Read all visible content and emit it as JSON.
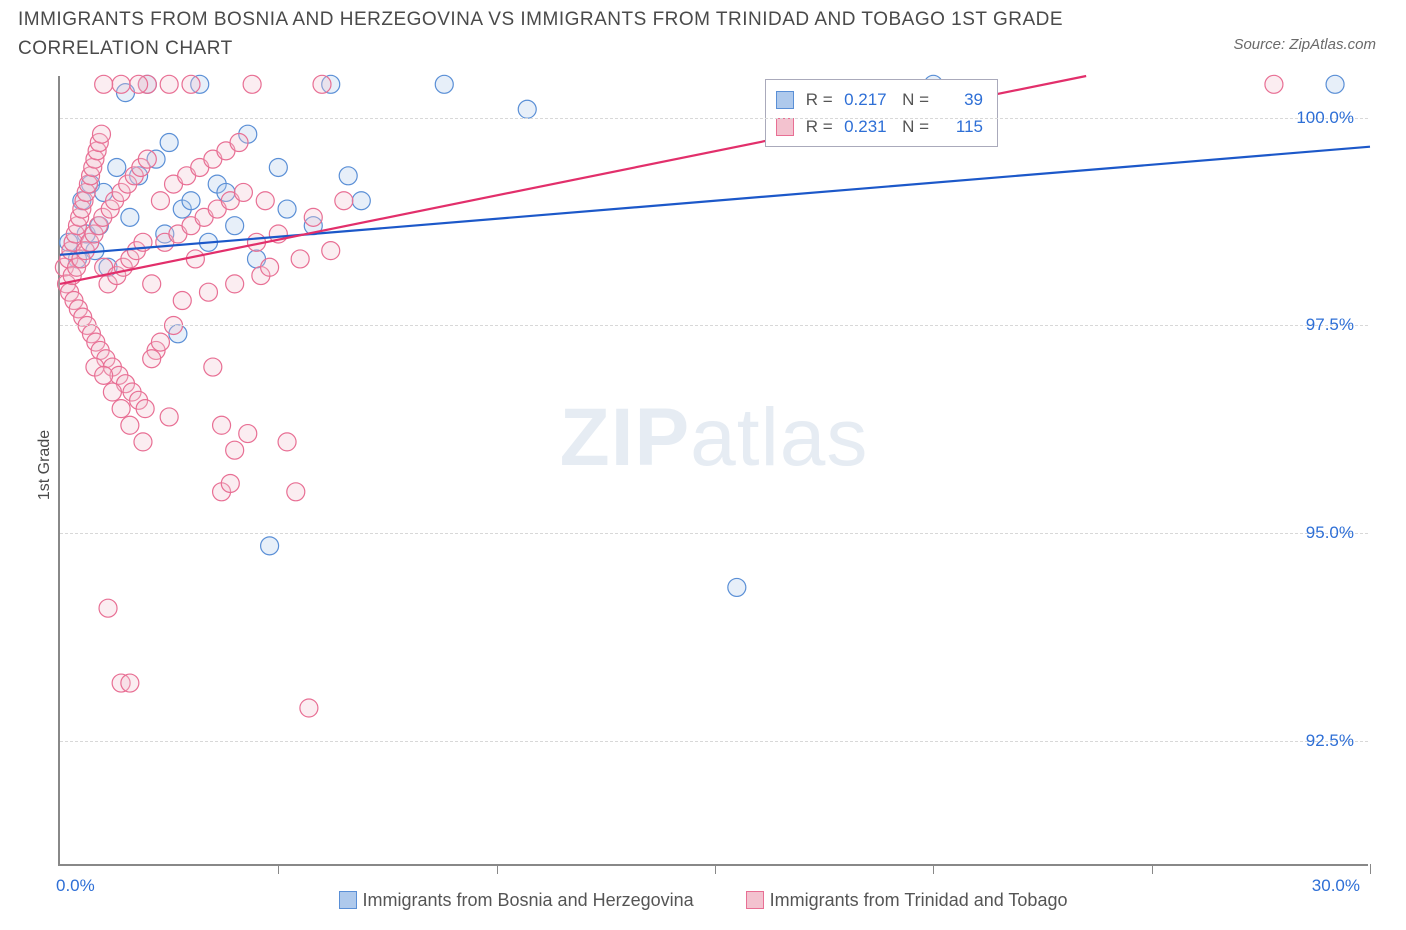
{
  "title": "IMMIGRANTS FROM BOSNIA AND HERZEGOVINA VS IMMIGRANTS FROM TRINIDAD AND TOBAGO 1ST GRADE CORRELATION CHART",
  "source": "Source: ZipAtlas.com",
  "ylabel": "1st Grade",
  "watermark_zip": "ZIP",
  "watermark_atlas": "atlas",
  "xlim": [
    0,
    30
  ],
  "ylim": [
    91,
    100.5
  ],
  "ytick_values": [
    92.5,
    95.0,
    97.5,
    100.0
  ],
  "ytick_labels": [
    "92.5%",
    "95.0%",
    "97.5%",
    "100.0%"
  ],
  "xtick_values": [
    5,
    10,
    15,
    20,
    25,
    30
  ],
  "xtick_label_left": "0.0%",
  "xtick_label_right": "30.0%",
  "series": [
    {
      "name": "Immigrants from Bosnia and Herzegovina",
      "color_fill": "#aec9ec",
      "color_stroke": "#5a8fd6",
      "line_color": "#1c58c9",
      "r_value": "0.217",
      "n_value": "39",
      "trend": {
        "x1": 0,
        "y1": 98.35,
        "x2": 30,
        "y2": 99.65
      },
      "points": [
        [
          0.2,
          98.5
        ],
        [
          0.4,
          98.3
        ],
        [
          0.5,
          99.0
        ],
        [
          0.6,
          98.6
        ],
        [
          0.7,
          99.2
        ],
        [
          0.8,
          98.4
        ],
        [
          0.9,
          98.7
        ],
        [
          1.0,
          99.1
        ],
        [
          1.1,
          98.2
        ],
        [
          1.3,
          99.4
        ],
        [
          1.5,
          100.3
        ],
        [
          1.6,
          98.8
        ],
        [
          1.8,
          99.3
        ],
        [
          2.0,
          100.4
        ],
        [
          2.2,
          99.5
        ],
        [
          2.4,
          98.6
        ],
        [
          2.5,
          99.7
        ],
        [
          2.7,
          97.4
        ],
        [
          2.8,
          98.9
        ],
        [
          3.0,
          99.0
        ],
        [
          3.2,
          100.4
        ],
        [
          3.4,
          98.5
        ],
        [
          3.6,
          99.2
        ],
        [
          3.8,
          99.1
        ],
        [
          4.0,
          98.7
        ],
        [
          4.3,
          99.8
        ],
        [
          4.5,
          98.3
        ],
        [
          4.8,
          94.85
        ],
        [
          5.0,
          99.4
        ],
        [
          5.2,
          98.9
        ],
        [
          5.8,
          98.7
        ],
        [
          6.2,
          100.4
        ],
        [
          6.6,
          99.3
        ],
        [
          6.9,
          99.0
        ],
        [
          8.8,
          100.4
        ],
        [
          10.7,
          100.1
        ],
        [
          15.5,
          94.35
        ],
        [
          20.0,
          100.4
        ],
        [
          29.2,
          100.4
        ]
      ]
    },
    {
      "name": "Immigrants from Trinidad and Tobago",
      "color_fill": "#f3c2cf",
      "color_stroke": "#e86f94",
      "line_color": "#e22f6b",
      "r_value": "0.231",
      "n_value": "115",
      "trend": {
        "x1": 0,
        "y1": 98.0,
        "x2": 23.5,
        "y2": 100.5
      },
      "points": [
        [
          0.1,
          98.2
        ],
        [
          0.15,
          98.0
        ],
        [
          0.2,
          98.3
        ],
        [
          0.22,
          97.9
        ],
        [
          0.25,
          98.4
        ],
        [
          0.28,
          98.1
        ],
        [
          0.3,
          98.5
        ],
        [
          0.32,
          97.8
        ],
        [
          0.35,
          98.6
        ],
        [
          0.38,
          98.2
        ],
        [
          0.4,
          98.7
        ],
        [
          0.42,
          97.7
        ],
        [
          0.45,
          98.8
        ],
        [
          0.48,
          98.3
        ],
        [
          0.5,
          98.9
        ],
        [
          0.52,
          97.6
        ],
        [
          0.55,
          99.0
        ],
        [
          0.58,
          98.4
        ],
        [
          0.6,
          99.1
        ],
        [
          0.62,
          97.5
        ],
        [
          0.65,
          99.2
        ],
        [
          0.68,
          98.5
        ],
        [
          0.7,
          99.3
        ],
        [
          0.72,
          97.4
        ],
        [
          0.75,
          99.4
        ],
        [
          0.78,
          98.6
        ],
        [
          0.8,
          99.5
        ],
        [
          0.82,
          97.3
        ],
        [
          0.85,
          99.6
        ],
        [
          0.88,
          98.7
        ],
        [
          0.9,
          99.7
        ],
        [
          0.92,
          97.2
        ],
        [
          0.95,
          99.8
        ],
        [
          0.98,
          98.8
        ],
        [
          1.0,
          98.2
        ],
        [
          1.05,
          97.1
        ],
        [
          1.1,
          98.0
        ],
        [
          1.15,
          98.9
        ],
        [
          1.2,
          97.0
        ],
        [
          1.25,
          99.0
        ],
        [
          1.3,
          98.1
        ],
        [
          1.35,
          96.9
        ],
        [
          1.4,
          99.1
        ],
        [
          1.45,
          98.2
        ],
        [
          1.5,
          96.8
        ],
        [
          1.55,
          99.2
        ],
        [
          1.6,
          98.3
        ],
        [
          1.65,
          96.7
        ],
        [
          1.7,
          99.3
        ],
        [
          1.75,
          98.4
        ],
        [
          1.8,
          96.6
        ],
        [
          1.85,
          99.4
        ],
        [
          1.9,
          98.5
        ],
        [
          1.95,
          96.5
        ],
        [
          2.0,
          99.5
        ],
        [
          2.1,
          98.0
        ],
        [
          2.2,
          97.2
        ],
        [
          2.3,
          99.0
        ],
        [
          2.4,
          98.5
        ],
        [
          2.5,
          96.4
        ],
        [
          2.6,
          99.2
        ],
        [
          2.7,
          98.6
        ],
        [
          2.8,
          97.8
        ],
        [
          2.9,
          99.3
        ],
        [
          3.0,
          98.7
        ],
        [
          3.1,
          98.3
        ],
        [
          3.2,
          99.4
        ],
        [
          3.3,
          98.8
        ],
        [
          3.4,
          97.9
        ],
        [
          3.5,
          99.5
        ],
        [
          3.6,
          98.9
        ],
        [
          3.7,
          96.3
        ],
        [
          3.8,
          99.6
        ],
        [
          3.9,
          99.0
        ],
        [
          4.0,
          98.0
        ],
        [
          4.1,
          99.7
        ],
        [
          4.2,
          99.1
        ],
        [
          4.3,
          96.2
        ],
        [
          4.4,
          100.4
        ],
        [
          4.5,
          98.5
        ],
        [
          4.6,
          98.1
        ],
        [
          4.7,
          99.0
        ],
        [
          4.8,
          98.2
        ],
        [
          5.0,
          98.6
        ],
        [
          5.2,
          96.1
        ],
        [
          5.4,
          95.5
        ],
        [
          5.5,
          98.3
        ],
        [
          5.8,
          98.8
        ],
        [
          6.0,
          100.4
        ],
        [
          6.2,
          98.4
        ],
        [
          6.5,
          99.0
        ],
        [
          0.8,
          97.0
        ],
        [
          1.0,
          96.9
        ],
        [
          1.2,
          96.7
        ],
        [
          1.4,
          96.5
        ],
        [
          1.6,
          96.3
        ],
        [
          1.9,
          96.1
        ],
        [
          2.1,
          97.1
        ],
        [
          2.3,
          97.3
        ],
        [
          2.6,
          97.5
        ],
        [
          3.5,
          97.0
        ],
        [
          1.1,
          94.1
        ],
        [
          1.4,
          93.2
        ],
        [
          1.6,
          93.2
        ],
        [
          3.7,
          95.5
        ],
        [
          3.9,
          95.6
        ],
        [
          5.7,
          92.9
        ],
        [
          3.0,
          100.4
        ],
        [
          2.5,
          100.4
        ],
        [
          2.0,
          100.4
        ],
        [
          1.8,
          100.4
        ],
        [
          1.4,
          100.4
        ],
        [
          1.0,
          100.4
        ],
        [
          4.0,
          96.0
        ],
        [
          27.8,
          100.4
        ]
      ]
    }
  ],
  "bottom_legend": [
    "Immigrants from Bosnia and Herzegovina",
    "Immigrants from Trinidad and Tobago"
  ],
  "marker_radius": 9,
  "background_color": "#ffffff"
}
